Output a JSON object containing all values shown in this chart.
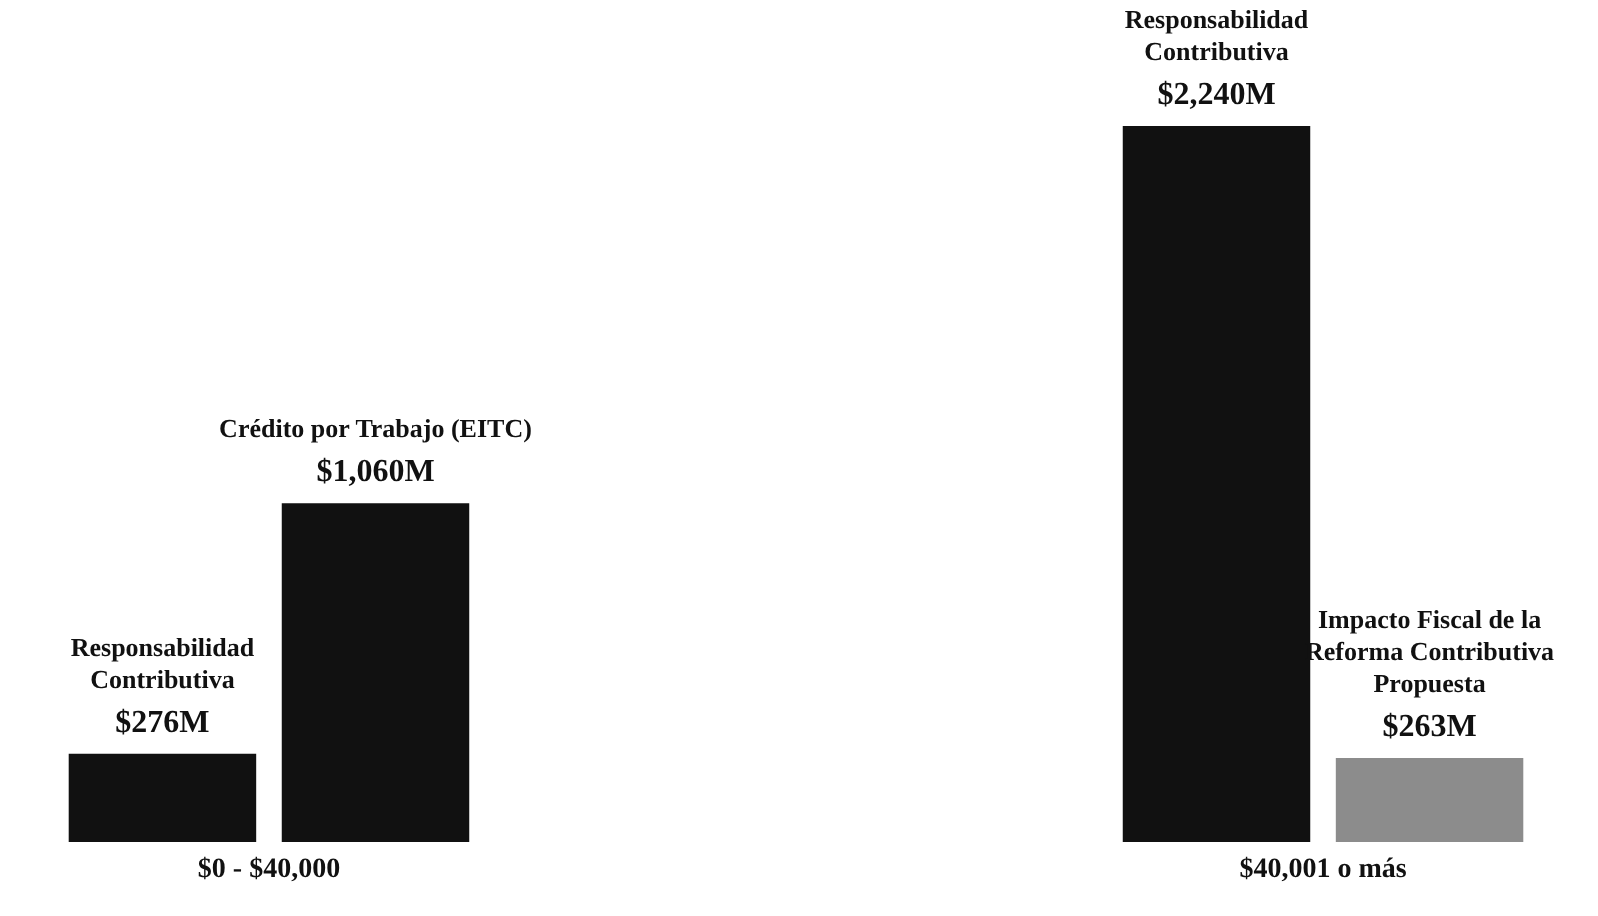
{
  "chart_data": {
    "type": "bar",
    "categories": [
      "$0 - $40,000",
      "$40,001 o más"
    ],
    "series": [
      {
        "color": "#111111",
        "values": [
          276,
          2240
        ],
        "value_labels": [
          "$276M",
          "$2,240M"
        ]
      },
      {
        "colors": [
          "#111111",
          "#8c8c8c"
        ],
        "values": [
          1060,
          263
        ],
        "value_labels": [
          "$1,060M",
          "$263M"
        ]
      }
    ],
    "annotations": [
      "Responsabilidad Contributiva",
      "Crédito por Trabajo (EITC)",
      "Responsabilidad Contributiva",
      "Impacto Fiscal de la Reforma Contributiva Propuesta"
    ]
  }
}
